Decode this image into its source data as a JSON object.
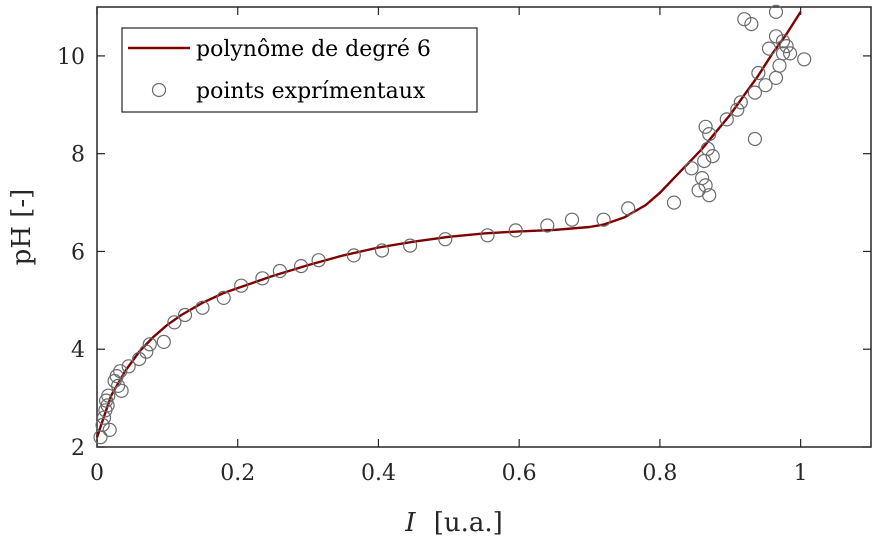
{
  "chart_data": {
    "type": "scatter",
    "xlabel": "I",
    "xlabel_unit": "[u.a.]",
    "ylabel": "pH [-]",
    "xlim": [
      0,
      1.1
    ],
    "ylim": [
      2,
      11
    ],
    "xticks": [
      0,
      0.2,
      0.4,
      0.6,
      0.8,
      1
    ],
    "xtick_labels": [
      "0",
      "0.2",
      "0.4",
      "0.6",
      "0.8",
      "1"
    ],
    "yticks": [
      2,
      4,
      6,
      8,
      10
    ],
    "ytick_labels": [
      "2",
      "4",
      "6",
      "8",
      "10"
    ],
    "grid": false,
    "legend_position": "top-left",
    "series": [
      {
        "name": "polynôme de degré 6",
        "kind": "line",
        "color": "#7f0000",
        "x": [
          0,
          0.02,
          0.04,
          0.06,
          0.08,
          0.1,
          0.12,
          0.15,
          0.18,
          0.2,
          0.25,
          0.3,
          0.35,
          0.4,
          0.45,
          0.5,
          0.55,
          0.6,
          0.65,
          0.7,
          0.72,
          0.75,
          0.78,
          0.8,
          0.82,
          0.84,
          0.86,
          0.88,
          0.9,
          0.92,
          0.94,
          0.96,
          0.98,
          1.0
        ],
        "y": [
          2.2,
          3.05,
          3.55,
          3.95,
          4.25,
          4.5,
          4.7,
          4.95,
          5.15,
          5.25,
          5.5,
          5.72,
          5.92,
          6.08,
          6.2,
          6.3,
          6.37,
          6.41,
          6.44,
          6.5,
          6.55,
          6.7,
          6.95,
          7.2,
          7.5,
          7.8,
          8.1,
          8.45,
          8.8,
          9.2,
          9.6,
          10.05,
          10.45,
          10.9
        ]
      },
      {
        "name": "points exprímentaux",
        "kind": "scatter",
        "color": "#6b6b6b",
        "points": [
          [
            0.005,
            2.2
          ],
          [
            0.008,
            2.45
          ],
          [
            0.01,
            2.6
          ],
          [
            0.012,
            2.75
          ],
          [
            0.013,
            2.95
          ],
          [
            0.015,
            2.85
          ],
          [
            0.016,
            3.05
          ],
          [
            0.018,
            2.35
          ],
          [
            0.025,
            3.35
          ],
          [
            0.028,
            3.45
          ],
          [
            0.03,
            3.25
          ],
          [
            0.033,
            3.55
          ],
          [
            0.035,
            3.15
          ],
          [
            0.045,
            3.65
          ],
          [
            0.06,
            3.8
          ],
          [
            0.07,
            3.95
          ],
          [
            0.075,
            4.1
          ],
          [
            0.095,
            4.15
          ],
          [
            0.11,
            4.55
          ],
          [
            0.125,
            4.7
          ],
          [
            0.15,
            4.85
          ],
          [
            0.18,
            5.05
          ],
          [
            0.205,
            5.3
          ],
          [
            0.235,
            5.45
          ],
          [
            0.26,
            5.6
          ],
          [
            0.29,
            5.7
          ],
          [
            0.315,
            5.82
          ],
          [
            0.365,
            5.92
          ],
          [
            0.405,
            6.02
          ],
          [
            0.445,
            6.12
          ],
          [
            0.495,
            6.25
          ],
          [
            0.555,
            6.33
          ],
          [
            0.595,
            6.43
          ],
          [
            0.64,
            6.53
          ],
          [
            0.675,
            6.65
          ],
          [
            0.72,
            6.65
          ],
          [
            0.755,
            6.88
          ],
          [
            0.82,
            7.0
          ],
          [
            0.845,
            7.7
          ],
          [
            0.855,
            7.25
          ],
          [
            0.86,
            7.5
          ],
          [
            0.865,
            7.35
          ],
          [
            0.87,
            7.15
          ],
          [
            0.863,
            7.85
          ],
          [
            0.868,
            8.1
          ],
          [
            0.875,
            7.95
          ],
          [
            0.865,
            8.55
          ],
          [
            0.87,
            8.4
          ],
          [
            0.895,
            8.7
          ],
          [
            0.91,
            8.9
          ],
          [
            0.915,
            9.05
          ],
          [
            0.935,
            8.3
          ],
          [
            0.935,
            9.25
          ],
          [
            0.94,
            9.65
          ],
          [
            0.95,
            9.4
          ],
          [
            0.955,
            10.15
          ],
          [
            0.965,
            9.55
          ],
          [
            0.965,
            10.4
          ],
          [
            0.97,
            9.8
          ],
          [
            0.975,
            10.05
          ],
          [
            0.975,
            10.3
          ],
          [
            0.98,
            10.2
          ],
          [
            0.985,
            10.05
          ],
          [
            0.92,
            10.75
          ],
          [
            0.93,
            10.65
          ],
          [
            0.965,
            10.9
          ],
          [
            1.005,
            9.93
          ]
        ]
      }
    ]
  }
}
